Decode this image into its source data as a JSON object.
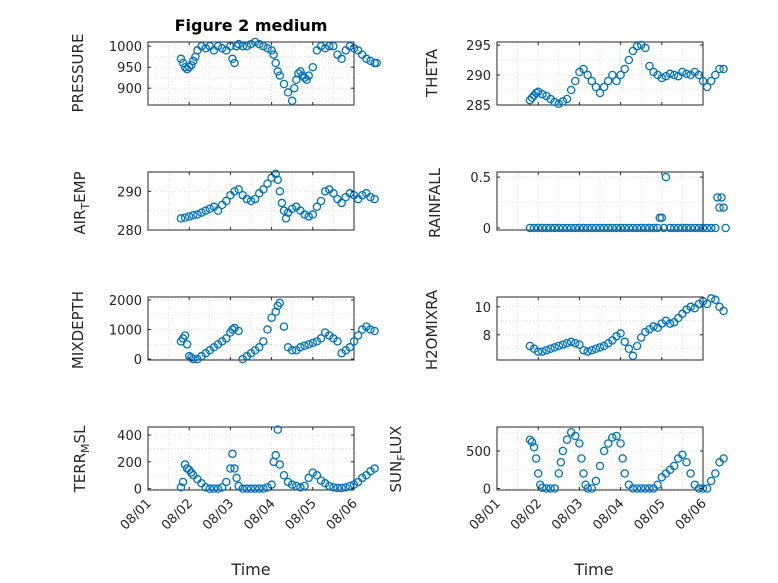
{
  "figure": {
    "title": "Figure 2 medium",
    "marker_color": "#0072BD"
  },
  "chart_data": [
    {
      "type": "scatter",
      "title": "Figure 2 medium",
      "ylabel": "PRESSURE",
      "xlabel": "",
      "xlim": [
        "08/01",
        "08/06"
      ],
      "ylim": [
        860,
        1010
      ],
      "yticks": [
        900,
        950,
        1000
      ],
      "grid": true,
      "x": [
        0.8,
        0.85,
        0.9,
        0.95,
        1.0,
        1.05,
        1.1,
        1.15,
        1.2,
        1.3,
        1.4,
        1.5,
        1.6,
        1.7,
        1.8,
        1.9,
        2.0,
        2.05,
        2.1,
        2.15,
        2.2,
        2.3,
        2.4,
        2.5,
        2.6,
        2.7,
        2.8,
        2.9,
        3.0,
        3.05,
        3.1,
        3.15,
        3.2,
        3.3,
        3.4,
        3.5,
        3.55,
        3.6,
        3.65,
        3.7,
        3.75,
        3.8,
        3.85,
        3.9,
        4.0,
        4.1,
        4.2,
        4.3,
        4.4,
        4.5,
        4.6,
        4.7,
        4.8,
        4.9,
        5.0,
        5.1,
        5.2,
        5.3,
        5.4,
        5.5,
        5.55
      ],
      "y": [
        970,
        960,
        950,
        945,
        950,
        955,
        965,
        975,
        990,
        1000,
        995,
        1000,
        990,
        1000,
        995,
        990,
        1000,
        970,
        960,
        1000,
        1005,
        1000,
        1000,
        1005,
        1010,
        1005,
        1000,
        995,
        990,
        980,
        960,
        940,
        930,
        910,
        890,
        870,
        900,
        920,
        935,
        940,
        930,
        925,
        920,
        930,
        950,
        990,
        1000,
        995,
        1000,
        1000,
        980,
        970,
        990,
        1000,
        995,
        990,
        980,
        970,
        965,
        960,
        960
      ]
    },
    {
      "type": "scatter",
      "title": "",
      "ylabel": "THETA",
      "xlabel": "",
      "xlim": [
        "08/01",
        "08/06"
      ],
      "ylim": [
        285,
        295.5
      ],
      "yticks": [
        285,
        290,
        295
      ],
      "grid": true,
      "x": [
        0.8,
        0.85,
        0.9,
        0.95,
        1.0,
        1.1,
        1.2,
        1.3,
        1.4,
        1.5,
        1.6,
        1.7,
        1.8,
        1.9,
        2.0,
        2.1,
        2.2,
        2.3,
        2.4,
        2.5,
        2.6,
        2.7,
        2.8,
        2.9,
        3.0,
        3.1,
        3.2,
        3.3,
        3.4,
        3.5,
        3.6,
        3.7,
        3.8,
        3.9,
        4.0,
        4.1,
        4.2,
        4.3,
        4.4,
        4.5,
        4.6,
        4.7,
        4.8,
        4.9,
        5.0,
        5.1,
        5.2,
        5.3,
        5.4,
        5.5
      ],
      "y": [
        285.8,
        286.2,
        286.6,
        287.0,
        287.2,
        286.8,
        286.5,
        286.0,
        285.5,
        285.2,
        285.6,
        286.0,
        287.5,
        289.0,
        290.5,
        291.0,
        290.0,
        289.0,
        288.0,
        287.0,
        288.0,
        289.0,
        290.0,
        289.0,
        290.0,
        291.0,
        292.5,
        294.0,
        294.8,
        295.0,
        294.5,
        291.5,
        290.5,
        290.0,
        289.5,
        289.8,
        290.2,
        290.0,
        289.8,
        290.5,
        290.2,
        290.0,
        290.5,
        290.0,
        289.0,
        288.0,
        289.0,
        290.0,
        291.0,
        291.0
      ]
    },
    {
      "type": "scatter",
      "title": "",
      "ylabel": "AIR_TEMP",
      "xlabel": "",
      "xlim": [
        "08/01",
        "08/06"
      ],
      "ylim": [
        280,
        295
      ],
      "yticks": [
        280,
        290
      ],
      "grid": true,
      "x": [
        0.8,
        0.9,
        1.0,
        1.1,
        1.2,
        1.3,
        1.4,
        1.5,
        1.6,
        1.7,
        1.8,
        1.9,
        2.0,
        2.1,
        2.2,
        2.3,
        2.4,
        2.5,
        2.6,
        2.7,
        2.8,
        2.9,
        3.0,
        3.1,
        3.15,
        3.2,
        3.25,
        3.3,
        3.35,
        3.4,
        3.5,
        3.6,
        3.7,
        3.8,
        3.9,
        4.0,
        4.1,
        4.2,
        4.3,
        4.4,
        4.5,
        4.6,
        4.7,
        4.8,
        4.9,
        5.0,
        5.1,
        5.2,
        5.3,
        5.4,
        5.5
      ],
      "y": [
        283,
        283.2,
        283.5,
        283.8,
        284.0,
        284.5,
        285.0,
        285.5,
        286.0,
        285.0,
        286.5,
        287.5,
        289.0,
        290.0,
        290.5,
        289.0,
        288.0,
        287.5,
        288.0,
        289.5,
        290.5,
        292.0,
        293.5,
        294.5,
        293.0,
        290.0,
        287.0,
        285.0,
        283.0,
        284.5,
        285.5,
        286.0,
        285.0,
        284.0,
        283.5,
        284.0,
        286.0,
        287.5,
        290.0,
        290.5,
        289.5,
        288.0,
        287.0,
        288.5,
        289.5,
        289.0,
        288.0,
        289.0,
        289.5,
        288.5,
        288.0
      ]
    },
    {
      "type": "scatter",
      "title": "",
      "ylabel": "RAINFALL",
      "xlabel": "",
      "xlim": [
        "08/01",
        "08/06"
      ],
      "ylim": [
        -0.02,
        0.55
      ],
      "yticks": [
        0,
        0.5
      ],
      "grid": true,
      "x": [
        0.8,
        0.9,
        1.0,
        1.1,
        1.2,
        1.3,
        1.4,
        1.5,
        1.6,
        1.7,
        1.8,
        1.9,
        2.0,
        2.1,
        2.2,
        2.3,
        2.4,
        2.5,
        2.6,
        2.7,
        2.8,
        2.9,
        3.0,
        3.1,
        3.2,
        3.3,
        3.4,
        3.5,
        3.6,
        3.7,
        3.8,
        3.9,
        3.95,
        4.0,
        4.05,
        4.1,
        4.2,
        4.3,
        4.4,
        4.5,
        4.6,
        4.7,
        4.8,
        4.9,
        5.0,
        5.1,
        5.2,
        5.3,
        5.35,
        5.4,
        5.45,
        5.5,
        5.55
      ],
      "y": [
        0,
        0,
        0,
        0,
        0,
        0,
        0,
        0,
        0,
        0,
        0,
        0,
        0,
        0,
        0,
        0,
        0,
        0,
        0,
        0,
        0,
        0,
        0,
        0,
        0,
        0,
        0,
        0,
        0,
        0,
        0,
        0,
        0.1,
        0.1,
        0,
        0.5,
        0,
        0,
        0,
        0,
        0,
        0,
        0,
        0,
        0,
        0,
        0,
        0,
        0.3,
        0.2,
        0.3,
        0.2,
        0
      ]
    },
    {
      "type": "scatter",
      "title": "",
      "ylabel": "MIXDEPTH",
      "xlabel": "",
      "xlim": [
        "08/01",
        "08/06"
      ],
      "ylim": [
        -30,
        2100
      ],
      "yticks": [
        0,
        1000,
        2000
      ],
      "grid": true,
      "x": [
        0.8,
        0.85,
        0.9,
        0.95,
        1.0,
        1.05,
        1.1,
        1.2,
        1.3,
        1.4,
        1.5,
        1.6,
        1.7,
        1.8,
        1.9,
        2.0,
        2.05,
        2.1,
        2.2,
        2.3,
        2.4,
        2.5,
        2.6,
        2.7,
        2.8,
        2.9,
        3.0,
        3.1,
        3.15,
        3.2,
        3.3,
        3.4,
        3.5,
        3.6,
        3.7,
        3.8,
        3.9,
        4.0,
        4.1,
        4.2,
        4.3,
        4.4,
        4.5,
        4.6,
        4.7,
        4.8,
        4.9,
        5.0,
        5.1,
        5.2,
        5.3,
        5.4,
        5.5
      ],
      "y": [
        600,
        700,
        800,
        500,
        100,
        50,
        0,
        0,
        100,
        200,
        300,
        400,
        500,
        600,
        700,
        900,
        1000,
        1050,
        950,
        0,
        100,
        200,
        300,
        400,
        600,
        1000,
        1400,
        1600,
        1800,
        1900,
        1100,
        400,
        300,
        300,
        400,
        450,
        500,
        550,
        600,
        700,
        900,
        800,
        700,
        600,
        200,
        300,
        400,
        600,
        800,
        1000,
        1100,
        1000,
        950
      ]
    },
    {
      "type": "scatter",
      "title": "",
      "ylabel": "H2OMIXRA",
      "xlabel": "",
      "xlim": [
        "08/01",
        "08/06"
      ],
      "ylim": [
        6.2,
        10.7
      ],
      "yticks": [
        8,
        10
      ],
      "grid": true,
      "x": [
        0.8,
        0.9,
        1.0,
        1.1,
        1.2,
        1.3,
        1.4,
        1.5,
        1.6,
        1.7,
        1.8,
        1.9,
        2.0,
        2.1,
        2.2,
        2.3,
        2.4,
        2.5,
        2.6,
        2.7,
        2.8,
        2.9,
        3.0,
        3.1,
        3.2,
        3.3,
        3.4,
        3.5,
        3.6,
        3.7,
        3.8,
        3.9,
        4.0,
        4.1,
        4.2,
        4.3,
        4.4,
        4.5,
        4.6,
        4.7,
        4.8,
        4.9,
        5.0,
        5.1,
        5.2,
        5.3,
        5.4,
        5.5
      ],
      "y": [
        7.2,
        7.0,
        6.8,
        6.8,
        6.9,
        7.0,
        7.1,
        7.2,
        7.3,
        7.4,
        7.5,
        7.4,
        7.3,
        6.9,
        6.8,
        6.9,
        7.0,
        7.1,
        7.2,
        7.4,
        7.6,
        7.9,
        8.1,
        7.5,
        7.0,
        6.5,
        7.2,
        7.8,
        8.2,
        8.4,
        8.6,
        8.5,
        8.8,
        9.0,
        8.8,
        8.9,
        9.2,
        9.5,
        9.8,
        10.0,
        9.9,
        10.2,
        10.4,
        10.2,
        10.6,
        10.5,
        10.0,
        9.7
      ]
    },
    {
      "type": "scatter",
      "title": "",
      "ylabel": "TERR_MSL",
      "xlabel": "Time",
      "xlim": [
        "08/01",
        "08/06"
      ],
      "xticks": [
        "08/01",
        "08/02",
        "08/03",
        "08/04",
        "08/05",
        "08/06"
      ],
      "ylim": [
        -10,
        460
      ],
      "yticks": [
        0,
        200,
        400
      ],
      "grid": true,
      "x": [
        0.8,
        0.85,
        0.9,
        0.95,
        1.0,
        1.05,
        1.1,
        1.2,
        1.3,
        1.4,
        1.5,
        1.6,
        1.7,
        1.8,
        1.9,
        2.0,
        2.05,
        2.1,
        2.15,
        2.2,
        2.3,
        2.4,
        2.5,
        2.6,
        2.7,
        2.8,
        2.9,
        3.0,
        3.05,
        3.1,
        3.15,
        3.2,
        3.3,
        3.4,
        3.5,
        3.6,
        3.7,
        3.8,
        3.9,
        4.0,
        4.1,
        4.2,
        4.3,
        4.4,
        4.5,
        4.6,
        4.7,
        4.8,
        4.9,
        5.0,
        5.1,
        5.2,
        5.3,
        5.4,
        5.5
      ],
      "y": [
        10,
        50,
        180,
        150,
        140,
        120,
        100,
        70,
        40,
        10,
        0,
        0,
        0,
        10,
        50,
        150,
        260,
        150,
        80,
        20,
        0,
        0,
        0,
        0,
        0,
        0,
        10,
        30,
        200,
        250,
        440,
        180,
        100,
        50,
        30,
        20,
        10,
        20,
        80,
        120,
        100,
        60,
        40,
        20,
        10,
        5,
        5,
        10,
        20,
        30,
        50,
        80,
        100,
        130,
        150
      ]
    },
    {
      "type": "scatter",
      "title": "",
      "ylabel": "SUN_FLUX",
      "xlabel": "Time",
      "xlim": [
        "08/01",
        "08/06"
      ],
      "xticks": [
        "08/01",
        "08/02",
        "08/03",
        "08/04",
        "08/05",
        "08/06"
      ],
      "ylim": [
        -20,
        820
      ],
      "yticks": [
        0,
        500
      ],
      "grid": true,
      "x": [
        0.8,
        0.85,
        0.9,
        0.95,
        1.0,
        1.05,
        1.1,
        1.2,
        1.3,
        1.4,
        1.5,
        1.55,
        1.6,
        1.7,
        1.8,
        1.9,
        2.0,
        2.05,
        2.1,
        2.15,
        2.2,
        2.3,
        2.4,
        2.5,
        2.6,
        2.7,
        2.8,
        2.9,
        3.0,
        3.05,
        3.1,
        3.2,
        3.3,
        3.4,
        3.5,
        3.6,
        3.7,
        3.8,
        3.9,
        4.0,
        4.1,
        4.2,
        4.3,
        4.4,
        4.5,
        4.6,
        4.7,
        4.8,
        4.9,
        5.0,
        5.1,
        5.2,
        5.3,
        5.4,
        5.5
      ],
      "y": [
        650,
        620,
        550,
        400,
        200,
        50,
        10,
        0,
        0,
        0,
        200,
        350,
        500,
        650,
        750,
        700,
        600,
        400,
        200,
        50,
        0,
        0,
        100,
        300,
        500,
        600,
        680,
        700,
        600,
        400,
        200,
        50,
        0,
        0,
        0,
        0,
        0,
        0,
        50,
        150,
        200,
        250,
        300,
        400,
        450,
        350,
        200,
        50,
        0,
        0,
        0,
        100,
        200,
        350,
        400
      ]
    }
  ]
}
